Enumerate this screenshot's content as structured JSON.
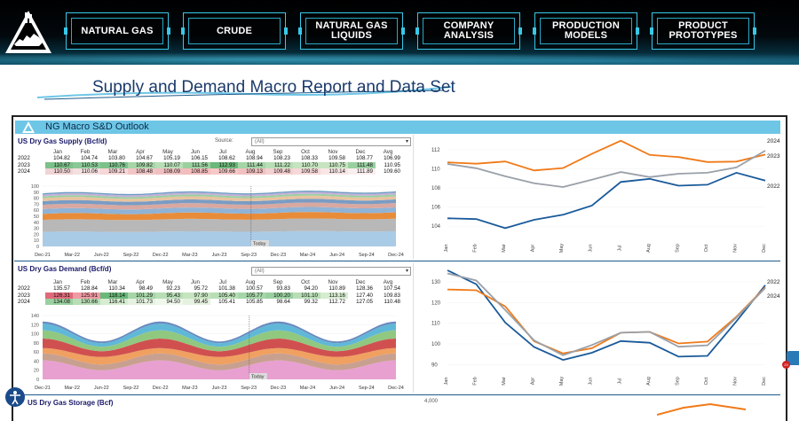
{
  "nav": {
    "items": [
      "NATURAL GAS",
      "CRUDE",
      "NATURAL GAS LIQUIDS",
      "COMPANY ANALYSIS",
      "PRODUCTION MODELS",
      "PRODUCT PROTOTYPES"
    ]
  },
  "page": {
    "title": "Supply and Demand Macro Report and Data Set"
  },
  "section": {
    "title": "NG Macro S&D Outlook"
  },
  "source_label": "Source:",
  "source_value": "(All)",
  "supply": {
    "title": "US Dry Gas Supply (Bcf/d)",
    "months": [
      "Jan",
      "Feb",
      "Mar",
      "Apr",
      "May",
      "Jun",
      "Jul",
      "Aug",
      "Sep",
      "Oct",
      "Nov",
      "Dec",
      "Avg"
    ],
    "rows": [
      {
        "year": "2022",
        "values": [
          "104.82",
          "104.74",
          "103.80",
          "104.67",
          "105.19",
          "106.15",
          "108.62",
          "108.94",
          "108.23",
          "108.33",
          "109.58",
          "108.77",
          "106.99"
        ]
      },
      {
        "year": "2023",
        "values": [
          "110.67",
          "110.53",
          "110.76",
          "109.82",
          "110.07",
          "111.56",
          "112.93",
          "111.44",
          "111.22",
          "110.70",
          "110.75",
          "111.48",
          "110.95"
        ]
      },
      {
        "year": "2024",
        "values": [
          "110.50",
          "110.06",
          "109.21",
          "108.48",
          "108.09",
          "108.85",
          "109.66",
          "109.13",
          "109.48",
          "109.58",
          "110.14",
          "111.89",
          "109.60"
        ]
      }
    ],
    "xticks": [
      "Dec-21",
      "Mar-22",
      "Jun-22",
      "Sep-22",
      "Dec-22",
      "Mar-23",
      "Jun-23",
      "Sep-23",
      "Dec-23",
      "Mar-24",
      "Jun-24",
      "Sep-24",
      "Dec-24"
    ],
    "yticks": [
      "0",
      "10",
      "20",
      "30",
      "40",
      "50",
      "60",
      "70",
      "80",
      "90",
      "100"
    ],
    "today": "Today"
  },
  "demand": {
    "title": "US Dry Gas Demand (Bcf/d)",
    "months": [
      "Jan",
      "Feb",
      "Mar",
      "Apr",
      "May",
      "Jun",
      "Jul",
      "Aug",
      "Sep",
      "Oct",
      "Nov",
      "Dec",
      "Avg"
    ],
    "rows": [
      {
        "year": "2022",
        "values": [
          "135.57",
          "128.84",
          "110.34",
          "98.49",
          "92.23",
          "95.72",
          "101.38",
          "100.57",
          "93.83",
          "94.20",
          "110.89",
          "128.36",
          "107.54"
        ]
      },
      {
        "year": "2023",
        "values": [
          "126.31",
          "125.91",
          "118.14",
          "101.29",
          "95.43",
          "97.90",
          "105.40",
          "105.77",
          "100.20",
          "101.10",
          "113.16",
          "127.40",
          "109.83"
        ]
      },
      {
        "year": "2024",
        "values": [
          "134.08",
          "130.66",
          "116.41",
          "101.73",
          "94.50",
          "99.45",
          "105.41",
          "105.85",
          "98.64",
          "99.32",
          "112.72",
          "127.05",
          "110.48"
        ]
      }
    ],
    "xticks": [
      "Dec-21",
      "Mar-22",
      "Jun-22",
      "Sep-22",
      "Dec-22",
      "Mar-23",
      "Jun-23",
      "Sep-23",
      "Dec-23",
      "Mar-24",
      "Jun-24",
      "Sep-24",
      "Dec-24"
    ],
    "yticks": [
      "0",
      "20",
      "40",
      "60",
      "80",
      "100",
      "120",
      "140"
    ],
    "today": "Today"
  },
  "storage": {
    "title": "US Dry Gas Storage (Bcf)",
    "ytick_top": "4,000"
  },
  "chart_data": [
    {
      "type": "line",
      "x": [
        "Jan",
        "Feb",
        "Mar",
        "Apr",
        "May",
        "Jun",
        "Jul",
        "Aug",
        "Sep",
        "Oct",
        "Nov",
        "Dec"
      ],
      "yticks": [
        "104",
        "106",
        "108",
        "110",
        "112"
      ],
      "ylim": [
        103,
        113
      ],
      "series": [
        {
          "name": "2022",
          "color": "#1a5a9a",
          "values": [
            104.82,
            104.74,
            103.8,
            104.67,
            105.19,
            106.15,
            108.62,
            108.94,
            108.23,
            108.33,
            109.58,
            108.77
          ]
        },
        {
          "name": "2023",
          "color": "#f07a18",
          "values": [
            110.67,
            110.53,
            110.76,
            109.82,
            110.07,
            111.56,
            112.93,
            111.44,
            111.22,
            110.7,
            110.75,
            111.48
          ]
        },
        {
          "name": "2024",
          "color": "#9aa0a8",
          "values": [
            110.5,
            110.06,
            109.21,
            108.48,
            108.09,
            108.85,
            109.66,
            109.13,
            109.48,
            109.58,
            110.14,
            111.89
          ]
        }
      ],
      "series_labels": [
        "2024",
        "2023",
        "2022"
      ]
    },
    {
      "type": "line",
      "x": [
        "Jan",
        "Feb",
        "Mar",
        "Apr",
        "May",
        "Jun",
        "Jul",
        "Aug",
        "Sep",
        "Oct",
        "Nov",
        "Dec"
      ],
      "yticks": [
        "90",
        "100",
        "110",
        "120",
        "130"
      ],
      "ylim": [
        88,
        136
      ],
      "series": [
        {
          "name": "2022",
          "color": "#1a5a9a",
          "values": [
            135.57,
            128.84,
            110.34,
            98.49,
            92.23,
            95.72,
            101.38,
            100.57,
            93.83,
            94.2,
            110.89,
            128.36
          ]
        },
        {
          "name": "2023",
          "color": "#f07a18",
          "values": [
            126.31,
            125.91,
            118.14,
            101.29,
            95.43,
            97.9,
            105.4,
            105.77,
            100.2,
            101.1,
            113.16,
            127.4
          ]
        },
        {
          "name": "2024",
          "color": "#9aa0a8",
          "values": [
            134.08,
            130.66,
            116.41,
            101.73,
            94.5,
            99.45,
            105.41,
            105.85,
            98.64,
            99.32,
            112.72,
            127.05
          ]
        }
      ],
      "series_labels": [
        "2022",
        "2024"
      ]
    }
  ],
  "colors": {
    "accent": "#6ec6e6",
    "nav_border": "#38c8e8"
  }
}
